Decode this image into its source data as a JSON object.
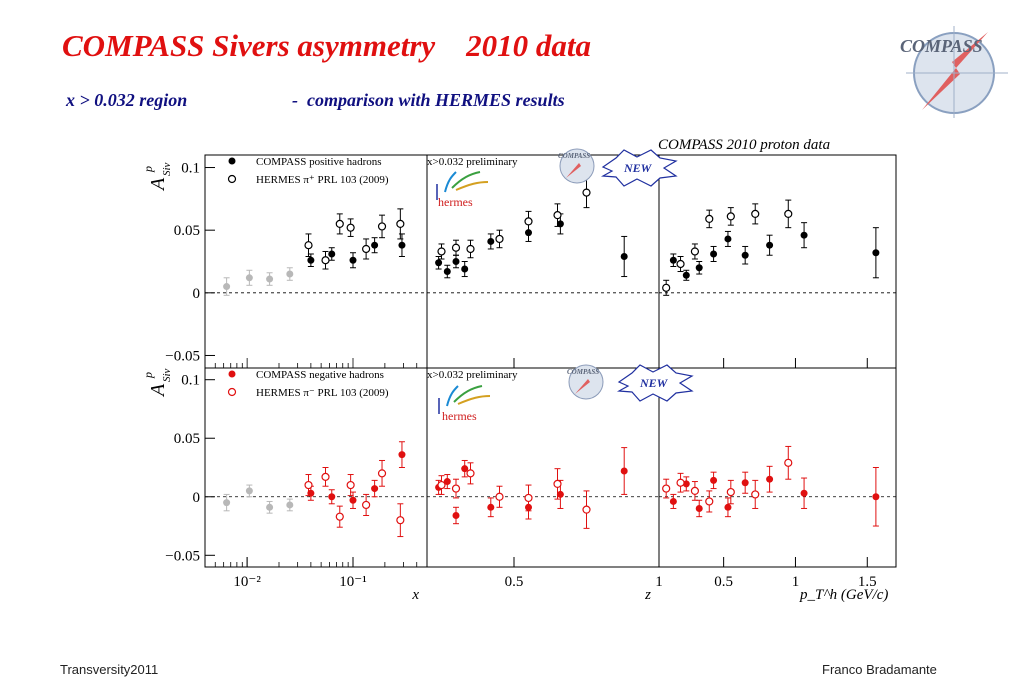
{
  "slide": {
    "title": "COMPASS Sivers asymmetry    2010 data",
    "subtitle_left": "x > 0.032 region",
    "subtitle_right": "-  comparison with HERMES results",
    "footer_left": "Transversity2011",
    "footer_right": "Franco Bradamante",
    "logo_text": "COMPASS"
  },
  "figure_labels": {
    "header": "COMPASS 2010 proton data",
    "preliminary": "x>0.032  preliminary",
    "new_badge": "NEW",
    "hermes_logo": "hermes",
    "small_logo": "COMPASS",
    "ylabel": "A",
    "ylabel_sup": "p",
    "ylabel_sub": "Siv"
  },
  "chart_data": [
    {
      "type": "scatter",
      "row": "positive",
      "ylim": [
        -0.06,
        0.11
      ],
      "yticks": [
        {
          "v": 0.1,
          "label": "0.1"
        },
        {
          "v": 0.05,
          "label": "0.05"
        },
        {
          "v": 0,
          "label": "0"
        },
        {
          "v": -0.05,
          "label": "−0.05"
        }
      ],
      "legend": [
        {
          "label": "COMPASS positive hadrons",
          "marker": "filled",
          "color": "#000000"
        },
        {
          "label": "HERMES π⁺ PRL 103 (2009)",
          "marker": "open",
          "color": "#000000"
        }
      ],
      "panels": [
        {
          "var": "x",
          "scale": "log",
          "xlim": [
            0.004,
            0.5
          ],
          "series": [
            {
              "name": "COMPASS low-x (gray)",
              "marker": "filled",
              "color": "#b8b8b8",
              "x": [
                0.0064,
                0.0105,
                0.0163,
                0.0253
              ],
              "y": [
                0.005,
                0.012,
                0.011,
                0.015
              ],
              "err": [
                0.007,
                0.006,
                0.005,
                0.005
              ]
            },
            {
              "name": "COMPASS positive hadrons",
              "marker": "filled",
              "color": "#000000",
              "x": [
                0.04,
                0.063,
                0.1,
                0.16,
                0.29
              ],
              "y": [
                0.026,
                0.031,
                0.026,
                0.038,
                0.038
              ],
              "err": [
                0.005,
                0.005,
                0.006,
                0.006,
                0.009
              ]
            },
            {
              "name": "HERMES π⁺ PRL 103 (2009)",
              "marker": "open",
              "color": "#000000",
              "x": [
                0.038,
                0.055,
                0.075,
                0.095,
                0.133,
                0.188,
                0.28
              ],
              "y": [
                0.038,
                0.026,
                0.055,
                0.052,
                0.035,
                0.053,
                0.055
              ],
              "err": [
                0.009,
                0.007,
                0.008,
                0.007,
                0.008,
                0.009,
                0.012
              ]
            }
          ]
        },
        {
          "var": "z",
          "scale": "linear",
          "xlim": [
            0.2,
            1.0
          ],
          "xticks": [
            {
              "v": 0.5,
              "label": "0.5"
            },
            {
              "v": 1,
              "label": "1"
            }
          ],
          "series": [
            {
              "name": "COMPASS positive hadrons",
              "marker": "filled",
              "color": "#000000",
              "x": [
                0.24,
                0.27,
                0.3,
                0.33,
                0.42,
                0.55,
                0.66,
                0.88
              ],
              "y": [
                0.024,
                0.017,
                0.025,
                0.019,
                0.041,
                0.048,
                0.055,
                0.029
              ],
              "err": [
                0.005,
                0.005,
                0.005,
                0.006,
                0.006,
                0.007,
                0.008,
                0.016
              ]
            },
            {
              "name": "HERMES π⁺ PRL 103 (2009)",
              "marker": "open",
              "color": "#000000",
              "x": [
                0.25,
                0.3,
                0.35,
                0.45,
                0.55,
                0.65,
                0.75
              ],
              "y": [
                0.033,
                0.036,
                0.035,
                0.043,
                0.057,
                0.062,
                0.08
              ],
              "err": [
                0.006,
                0.006,
                0.007,
                0.007,
                0.008,
                0.009,
                0.012
              ]
            }
          ]
        },
        {
          "var": "p_T^h (GeV/c)",
          "scale": "linear",
          "xlim": [
            0.05,
            1.7
          ],
          "xticks": [
            {
              "v": 0.5,
              "label": "0.5"
            },
            {
              "v": 1,
              "label": "1"
            },
            {
              "v": 1.5,
              "label": "1.5"
            }
          ],
          "series": [
            {
              "name": "COMPASS positive hadrons",
              "marker": "filled",
              "color": "#000000",
              "x": [
                0.15,
                0.24,
                0.33,
                0.43,
                0.53,
                0.65,
                0.82,
                1.06,
                1.56
              ],
              "y": [
                0.026,
                0.014,
                0.02,
                0.031,
                0.043,
                0.03,
                0.038,
                0.046,
                0.032
              ],
              "err": [
                0.005,
                0.004,
                0.005,
                0.006,
                0.006,
                0.007,
                0.008,
                0.01,
                0.02
              ]
            },
            {
              "name": "HERMES π⁺ PRL 103 (2009)",
              "marker": "open",
              "color": "#000000",
              "x": [
                0.1,
                0.2,
                0.3,
                0.4,
                0.55,
                0.72,
                0.95
              ],
              "y": [
                0.004,
                0.023,
                0.033,
                0.059,
                0.061,
                0.063,
                0.063
              ],
              "err": [
                0.006,
                0.006,
                0.006,
                0.007,
                0.007,
                0.008,
                0.011
              ]
            }
          ]
        }
      ]
    },
    {
      "type": "scatter",
      "row": "negative",
      "ylim": [
        -0.06,
        0.11
      ],
      "yticks": [
        {
          "v": 0.1,
          "label": "0.1"
        },
        {
          "v": 0.05,
          "label": "0.05"
        },
        {
          "v": 0,
          "label": "0"
        },
        {
          "v": -0.05,
          "label": "−0.05"
        }
      ],
      "legend": [
        {
          "label": "COMPASS negative  hadrons",
          "marker": "filled",
          "color": "#e01010"
        },
        {
          "label": "HERMES π⁻ PRL 103 (2009)",
          "marker": "open",
          "color": "#e01010"
        }
      ],
      "panels": [
        {
          "var": "x",
          "scale": "log",
          "xlim": [
            0.004,
            0.5
          ],
          "xticks": [
            {
              "v": 0.01,
              "label": "10⁻²"
            },
            {
              "v": 0.1,
              "label": "10⁻¹"
            }
          ],
          "series": [
            {
              "name": "COMPASS low-x (gray)",
              "marker": "filled",
              "color": "#b8b8b8",
              "x": [
                0.0064,
                0.0105,
                0.0163,
                0.0253
              ],
              "y": [
                -0.005,
                0.005,
                -0.009,
                -0.007
              ],
              "err": [
                0.007,
                0.005,
                0.005,
                0.005
              ]
            },
            {
              "name": "COMPASS negative  hadrons",
              "marker": "filled",
              "color": "#e01010",
              "x": [
                0.04,
                0.063,
                0.1,
                0.16,
                0.29
              ],
              "y": [
                0.003,
                0.0,
                -0.003,
                0.007,
                0.036
              ],
              "err": [
                0.006,
                0.006,
                0.007,
                0.007,
                0.011
              ]
            },
            {
              "name": "HERMES π⁻ PRL 103 (2009)",
              "marker": "open",
              "color": "#e01010",
              "x": [
                0.038,
                0.055,
                0.075,
                0.095,
                0.133,
                0.188,
                0.28
              ],
              "y": [
                0.01,
                0.017,
                -0.017,
                0.01,
                -0.007,
                0.02,
                -0.02
              ],
              "err": [
                0.009,
                0.008,
                0.009,
                0.009,
                0.009,
                0.011,
                0.014
              ]
            }
          ]
        },
        {
          "var": "z",
          "scale": "linear",
          "xlim": [
            0.2,
            1.0
          ],
          "xticks": [
            {
              "v": 0.5,
              "label": "0.5"
            },
            {
              "v": 1,
              "label": "1"
            }
          ],
          "series": [
            {
              "name": "COMPASS negative  hadrons",
              "marker": "filled",
              "color": "#e01010",
              "x": [
                0.24,
                0.27,
                0.3,
                0.33,
                0.42,
                0.55,
                0.66,
                0.88
              ],
              "y": [
                0.008,
                0.013,
                -0.016,
                0.024,
                -0.009,
                -0.009,
                0.002,
                0.022
              ],
              "err": [
                0.006,
                0.006,
                0.007,
                0.007,
                0.008,
                0.01,
                0.012,
                0.02
              ]
            },
            {
              "name": "HERMES π⁻ PRL 103 (2009)",
              "marker": "open",
              "color": "#e01010",
              "x": [
                0.25,
                0.3,
                0.35,
                0.45,
                0.55,
                0.65,
                0.75
              ],
              "y": [
                0.01,
                0.007,
                0.02,
                0.0,
                -0.001,
                0.011,
                -0.011
              ],
              "err": [
                0.008,
                0.008,
                0.009,
                0.009,
                0.011,
                0.013,
                0.016
              ]
            }
          ]
        },
        {
          "var": "p_T^h (GeV/c)",
          "scale": "linear",
          "xlim": [
            0.05,
            1.7
          ],
          "xticks": [
            {
              "v": 0.5,
              "label": "0.5"
            },
            {
              "v": 1,
              "label": "1"
            },
            {
              "v": 1.5,
              "label": "1.5"
            }
          ],
          "series": [
            {
              "name": "COMPASS negative  hadrons",
              "marker": "filled",
              "color": "#e01010",
              "x": [
                0.15,
                0.24,
                0.33,
                0.43,
                0.53,
                0.65,
                0.82,
                1.06,
                1.56
              ],
              "y": [
                -0.004,
                0.011,
                -0.01,
                0.014,
                -0.009,
                0.012,
                0.015,
                0.003,
                0.0
              ],
              "err": [
                0.006,
                0.006,
                0.007,
                0.007,
                0.008,
                0.009,
                0.011,
                0.013,
                0.025
              ]
            },
            {
              "name": "HERMES π⁻ PRL 103 (2009)",
              "marker": "open",
              "color": "#e01010",
              "x": [
                0.1,
                0.2,
                0.3,
                0.4,
                0.55,
                0.72,
                0.95
              ],
              "y": [
                0.007,
                0.012,
                0.005,
                -0.004,
                0.004,
                0.002,
                0.029
              ],
              "err": [
                0.008,
                0.008,
                0.008,
                0.009,
                0.01,
                0.012,
                0.014
              ]
            }
          ]
        }
      ]
    }
  ]
}
